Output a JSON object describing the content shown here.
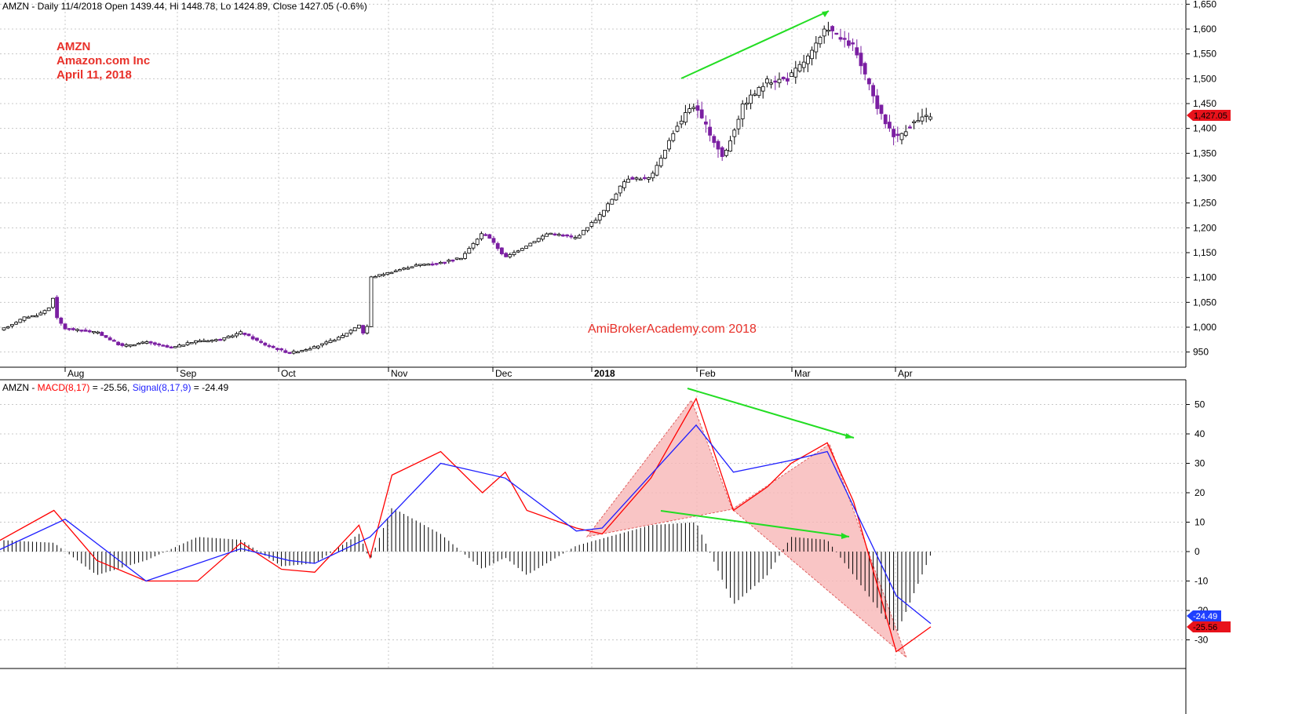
{
  "header": {
    "price_text": "AMZN - Daily 11/4/2018 Open 1439.44, Hi 1448.78, Lo 1424.89, Close 1427.05 (-0.6%)",
    "macd_prefix": "AMZN - ",
    "macd_label": "MACD(8,17)",
    "macd_value": " = -25.56, ",
    "signal_label": "Signal(8,17,9)",
    "signal_value": " = -24.49"
  },
  "annotation": {
    "symbol": "AMZN",
    "company": "Amazon.com Inc",
    "date": "April 11, 2018"
  },
  "watermark": "AmiBrokerAcademy.com  2018",
  "price_badge": "1,427.05",
  "signal_badge": "-24.49",
  "macd_badge": "-25.56",
  "colors": {
    "up_candle": "#ffffff",
    "down_candle": "#7b1fa2",
    "macd_line": "#ff0000",
    "signal_line": "#1f1fff",
    "histogram": "#000000",
    "divergence_arrow": "#22dd22",
    "pattern_fill": "#f7b6b6",
    "badge_price": "#e8121b",
    "badge_signal": "#1f3fff"
  },
  "chart_data": [
    {
      "type": "candlestick",
      "title": "AMZN - Daily",
      "x_axis_labels": [
        "Aug",
        "Sep",
        "Oct",
        "Nov",
        "Dec",
        "2018",
        "Feb",
        "Mar",
        "Apr"
      ],
      "y_tick_labels": [
        "950",
        "1,000",
        "1,050",
        "1,100",
        "1,150",
        "1,200",
        "1,250",
        "1,300",
        "1,350",
        "1,400",
        "1,450",
        "1,500",
        "1,550",
        "1,600",
        "1,650"
      ],
      "ylim": [
        925,
        1660
      ],
      "last_close": 1427.05,
      "series": [
        {
          "name": "AMZN",
          "path_points": [
            [
              "2017-07-07",
              1003
            ],
            [
              "2017-07-14",
              1020
            ],
            [
              "2017-07-20",
              1025
            ],
            [
              "2017-07-25",
              1040
            ],
            [
              "2017-07-27",
              1065
            ],
            [
              "2017-07-28",
              1020
            ],
            [
              "2017-08-01",
              997
            ],
            [
              "2017-08-10",
              990
            ],
            [
              "2017-08-17",
              962
            ],
            [
              "2017-08-24",
              970
            ],
            [
              "2017-08-31",
              958
            ],
            [
              "2017-09-08",
              973
            ],
            [
              "2017-09-15",
              975
            ],
            [
              "2017-09-21",
              990
            ],
            [
              "2017-09-28",
              965
            ],
            [
              "2017-10-05",
              948
            ],
            [
              "2017-10-12",
              960
            ],
            [
              "2017-10-19",
              980
            ],
            [
              "2017-10-24",
              1005
            ],
            [
              "2017-10-26",
              975
            ],
            [
              "2017-10-27",
              1100
            ],
            [
              "2017-11-09",
              1125
            ],
            [
              "2017-11-16",
              1130
            ],
            [
              "2017-11-22",
              1140
            ],
            [
              "2017-11-28",
              1190
            ],
            [
              "2017-11-30",
              1180
            ],
            [
              "2017-12-05",
              1140
            ],
            [
              "2017-12-12",
              1165
            ],
            [
              "2017-12-19",
              1190
            ],
            [
              "2017-12-28",
              1180
            ],
            [
              "2018-01-05",
              1230
            ],
            [
              "2018-01-12",
              1300
            ],
            [
              "2018-01-19",
              1300
            ],
            [
              "2018-01-26",
              1400
            ],
            [
              "2018-01-31",
              1450
            ],
            [
              "2018-02-05",
              1390
            ],
            [
              "2018-02-09",
              1340
            ],
            [
              "2018-02-15",
              1450
            ],
            [
              "2018-02-22",
              1495
            ],
            [
              "2018-02-28",
              1500
            ],
            [
              "2018-03-07",
              1550
            ],
            [
              "2018-03-12",
              1605
            ],
            [
              "2018-03-16",
              1580
            ],
            [
              "2018-03-20",
              1565
            ],
            [
              "2018-03-22",
              1530
            ],
            [
              "2018-03-28",
              1430
            ],
            [
              "2018-04-02",
              1380
            ],
            [
              "2018-04-06",
              1410
            ],
            [
              "2018-04-11",
              1427
            ]
          ]
        }
      ],
      "annotations": [
        "rising trend line from late January to mid-March highs"
      ]
    },
    {
      "type": "line",
      "title": "MACD(8,17) / Signal(8,17,9)",
      "x_axis_labels": [
        "Aug",
        "Sep",
        "Oct",
        "Nov",
        "Dec",
        "2018",
        "Feb",
        "Mar",
        "Apr"
      ],
      "y_tick_labels": [
        "-30",
        "-20",
        "-10",
        "0",
        "10",
        "20",
        "30",
        "40",
        "50"
      ],
      "ylim": [
        -36,
        57
      ],
      "series": [
        {
          "name": "MACD(8,17)",
          "points": [
            [
              "2017-07-01",
              3
            ],
            [
              "2017-07-27",
              14
            ],
            [
              "2017-08-10",
              -3
            ],
            [
              "2017-08-24",
              -10
            ],
            [
              "2017-09-08",
              -10
            ],
            [
              "2017-09-21",
              3
            ],
            [
              "2017-10-03",
              -6
            ],
            [
              "2017-10-12",
              -7
            ],
            [
              "2017-10-24",
              9
            ],
            [
              "2017-10-27",
              -2
            ],
            [
              "2017-11-02",
              26
            ],
            [
              "2017-11-16",
              34
            ],
            [
              "2017-11-28",
              20
            ],
            [
              "2017-12-05",
              27
            ],
            [
              "2017-12-12",
              14
            ],
            [
              "2017-12-28",
              8
            ],
            [
              "2018-01-05",
              6
            ],
            [
              "2018-01-19",
              25
            ],
            [
              "2018-02-01",
              52
            ],
            [
              "2018-02-12",
              14
            ],
            [
              "2018-02-22",
              22
            ],
            [
              "2018-03-01",
              30
            ],
            [
              "2018-03-12",
              37
            ],
            [
              "2018-03-20",
              17
            ],
            [
              "2018-04-02",
              -34
            ],
            [
              "2018-04-11",
              -25.56
            ]
          ]
        },
        {
          "name": "Signal(8,17,9)",
          "points": [
            [
              "2017-07-01",
              0
            ],
            [
              "2017-08-01",
              11
            ],
            [
              "2017-08-24",
              -10
            ],
            [
              "2017-09-21",
              1
            ],
            [
              "2017-10-05",
              -3
            ],
            [
              "2017-10-12",
              -4
            ],
            [
              "2017-10-27",
              5
            ],
            [
              "2017-11-16",
              30
            ],
            [
              "2017-12-05",
              25
            ],
            [
              "2017-12-28",
              7
            ],
            [
              "2018-01-05",
              8
            ],
            [
              "2018-02-01",
              43
            ],
            [
              "2018-02-12",
              27
            ],
            [
              "2018-03-01",
              31
            ],
            [
              "2018-03-12",
              34
            ],
            [
              "2018-04-02",
              -15
            ],
            [
              "2018-04-11",
              -24.49
            ]
          ]
        },
        {
          "name": "Histogram",
          "points": [
            [
              "2017-07-01",
              4
            ],
            [
              "2017-07-27",
              3
            ],
            [
              "2017-08-10",
              -8
            ],
            [
              "2017-08-24",
              -3
            ],
            [
              "2017-09-08",
              5
            ],
            [
              "2017-09-21",
              4
            ],
            [
              "2017-10-03",
              -5
            ],
            [
              "2017-10-12",
              -4
            ],
            [
              "2017-10-24",
              6
            ],
            [
              "2017-10-27",
              -3
            ],
            [
              "2017-11-02",
              15
            ],
            [
              "2017-11-16",
              6
            ],
            [
              "2017-11-28",
              -6
            ],
            [
              "2017-12-05",
              -2
            ],
            [
              "2017-12-12",
              -8
            ],
            [
              "2017-12-28",
              2
            ],
            [
              "2018-01-19",
              9
            ],
            [
              "2018-02-01",
              10
            ],
            [
              "2018-02-12",
              -18
            ],
            [
              "2018-02-22",
              -8
            ],
            [
              "2018-03-01",
              5
            ],
            [
              "2018-03-12",
              4
            ],
            [
              "2018-03-20",
              -8
            ],
            [
              "2018-04-02",
              -28
            ],
            [
              "2018-04-11",
              -1
            ]
          ]
        }
      ],
      "annotations": [
        "falling divergence line on MACD peaks",
        "divergence line on histogram",
        "shaded harmonic-style pattern"
      ]
    }
  ]
}
